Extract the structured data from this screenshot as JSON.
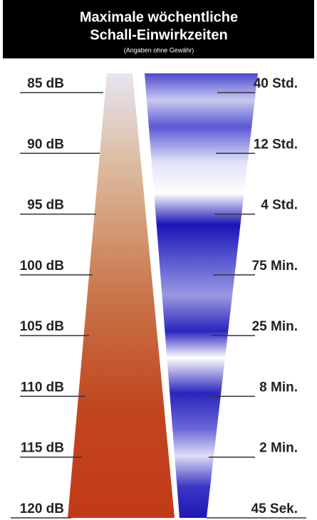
{
  "header": {
    "title_lines": [
      "Maximale wöchentliche",
      "Schall-Einwirkzeiten"
    ],
    "subtitle": "(Angaben ohne Gewähr)"
  },
  "rows": [
    {
      "level": "85 dB",
      "time": "40 Std."
    },
    {
      "level": "90 dB",
      "time": "12 Std."
    },
    {
      "level": "95 dB",
      "time": "4 Std."
    },
    {
      "level": "100 dB",
      "time": "75 Min."
    },
    {
      "level": "105 dB",
      "time": "25 Min."
    },
    {
      "level": "110 dB",
      "time": "8 Min."
    },
    {
      "level": "115 dB",
      "time": "2 Min."
    },
    {
      "level": "120 dB",
      "time": "45 Sek."
    }
  ]
}
